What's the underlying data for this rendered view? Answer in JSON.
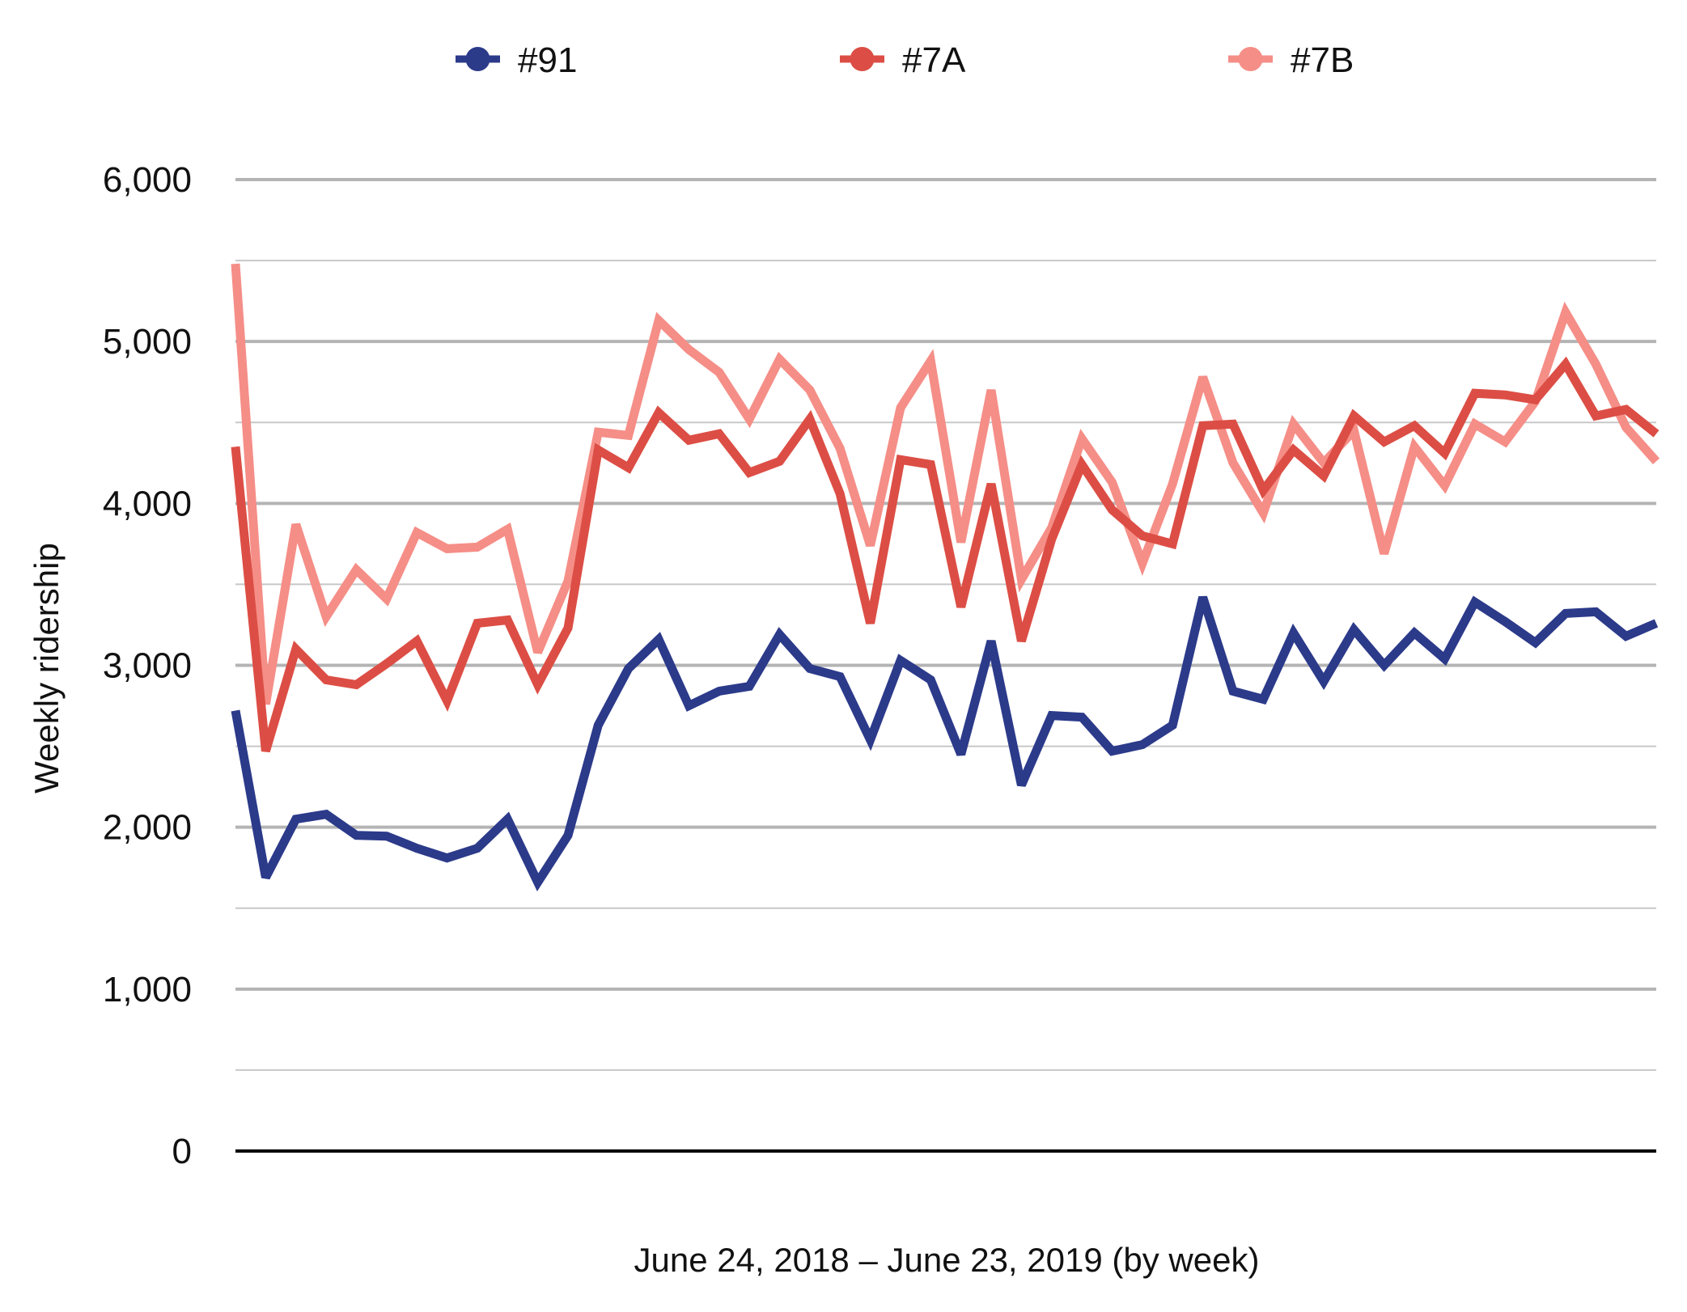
{
  "chart_data": {
    "type": "line",
    "xlabel": "June 24, 2018 – June 23, 2019 (by week)",
    "ylabel": "Weekly ridership",
    "ylim": [
      0,
      6000
    ],
    "yticks": [
      0,
      1000,
      2000,
      3000,
      4000,
      5000,
      6000
    ],
    "ytick_labels": [
      "0",
      "1,000",
      "2,000",
      "3,000",
      "4,000",
      "5,000",
      "6,000"
    ],
    "minor_gridlines": [
      500,
      1500,
      2500,
      3500,
      4500,
      5500
    ],
    "grid": true,
    "legend": "top",
    "x": [
      1,
      2,
      3,
      4,
      5,
      6,
      7,
      8,
      9,
      10,
      11,
      12,
      13,
      14,
      15,
      16,
      17,
      18,
      19,
      20,
      21,
      22,
      23,
      24,
      25,
      26,
      27,
      28,
      29,
      30,
      31,
      32,
      33,
      34,
      35,
      36,
      37,
      38,
      39,
      40,
      41,
      42,
      43,
      44,
      45,
      46,
      47,
      48
    ],
    "series": [
      {
        "name": "#91",
        "color": "#2c3a8a",
        "values": [
          2720,
          1690,
          2050,
          2080,
          1950,
          1945,
          1870,
          1810,
          1870,
          2050,
          1660,
          1950,
          2630,
          2980,
          3160,
          2750,
          2840,
          2870,
          3190,
          2980,
          2930,
          2540,
          3030,
          2910,
          2450,
          3150,
          2260,
          2690,
          2680,
          2470,
          2510,
          2630,
          3420,
          2840,
          2790,
          3200,
          2900,
          3220,
          3000,
          3200,
          3040,
          3390,
          3270,
          3140,
          3320,
          3330,
          3180,
          3260
        ]
      },
      {
        "name": "#7A",
        "color": "#dc4e45",
        "values": [
          4350,
          2470,
          3100,
          2910,
          2880,
          3010,
          3150,
          2780,
          3260,
          3280,
          2880,
          3230,
          4330,
          4220,
          4560,
          4390,
          4430,
          4190,
          4260,
          4520,
          4060,
          3260,
          4270,
          4240,
          3360,
          4120,
          3150,
          3780,
          4240,
          3960,
          3800,
          3750,
          4480,
          4490,
          4080,
          4330,
          4170,
          4540,
          4380,
          4480,
          4310,
          4680,
          4670,
          4640,
          4860,
          4540,
          4580,
          4430
        ]
      },
      {
        "name": "#7B",
        "color": "#f58e87",
        "values": [
          5480,
          2760,
          3870,
          3300,
          3590,
          3410,
          3820,
          3720,
          3730,
          3840,
          3080,
          3520,
          4440,
          4420,
          5130,
          4950,
          4810,
          4520,
          4890,
          4700,
          4340,
          3740,
          4590,
          4880,
          3760,
          4700,
          3530,
          3850,
          4400,
          4130,
          3630,
          4120,
          4780,
          4250,
          3940,
          4490,
          4250,
          4450,
          3690,
          4350,
          4110,
          4490,
          4380,
          4630,
          5180,
          4860,
          4470,
          4260
        ]
      }
    ]
  }
}
